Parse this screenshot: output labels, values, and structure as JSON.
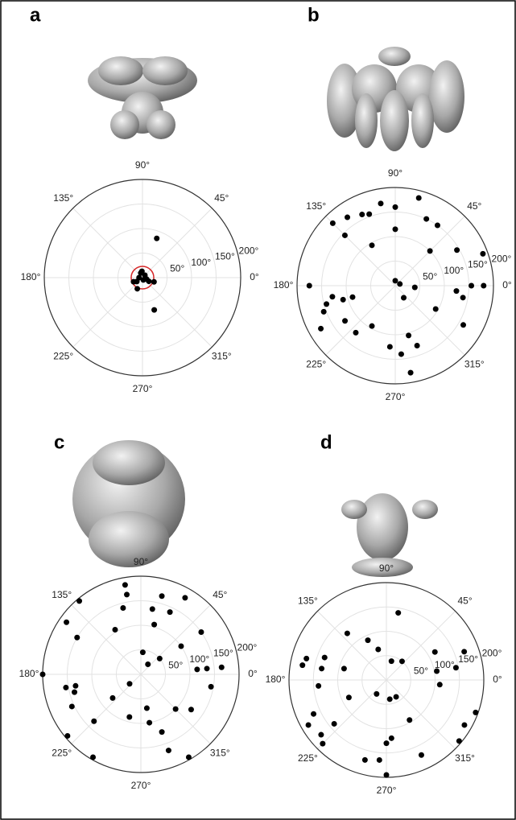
{
  "chart_data": [
    {
      "type": "polar",
      "label": "a",
      "theta": [
        70,
        340,
        290,
        245,
        205,
        110,
        45,
        290,
        180,
        340,
        95,
        215,
        330
      ],
      "r": [
        85,
        25,
        70,
        25,
        20,
        10,
        7,
        5,
        7,
        9,
        13,
        14,
        15
      ],
      "color": "#000000",
      "highlight_r": 23,
      "highlight_color": "#d62728",
      "rlim": [
        0,
        200
      ],
      "rticks": [
        {
          "value": 50,
          "label": "50°"
        },
        {
          "value": 100,
          "label": "100°"
        },
        {
          "value": 150,
          "label": "150°"
        },
        {
          "value": 200,
          "label": "200°"
        }
      ],
      "angle_ticks": [
        {
          "value": 0,
          "label": "0°"
        },
        {
          "value": 45,
          "label": "45°"
        },
        {
          "value": 90,
          "label": "90°"
        },
        {
          "value": 135,
          "label": "135°"
        },
        {
          "value": 180,
          "label": "180°"
        },
        {
          "value": 225,
          "label": "225°"
        },
        {
          "value": 270,
          "label": "270°"
        },
        {
          "value": 315,
          "label": "315°"
        }
      ]
    },
    {
      "type": "polar",
      "label": "b",
      "theta": [
        100,
        75,
        125,
        115,
        110,
        90,
        135,
        65,
        55,
        135,
        90,
        120,
        45,
        20,
        30,
        90,
        20,
        180,
        0,
        0,
        190,
        195,
        195,
        195,
        355,
        305,
        350,
        355,
        200,
        210,
        215,
        330,
        240,
        230,
        285,
        265,
        275,
        290,
        280,
        330
      ],
      "r": [
        170,
        185,
        170,
        160,
        155,
        160,
        180,
        150,
        150,
        145,
        115,
        95,
        100,
        190,
        145,
        10,
        10,
        175,
        155,
        180,
        130,
        145,
        110,
        90,
        40,
        30,
        140,
        125,
        155,
        175,
        125,
        95,
        95,
        125,
        105,
        125,
        140,
        130,
        180,
        160
      ],
      "color": "#000000",
      "rlim": [
        0,
        200
      ],
      "rticks": [
        {
          "value": 50,
          "label": "50°"
        },
        {
          "value": 100,
          "label": "100°"
        },
        {
          "value": 150,
          "label": "150°"
        },
        {
          "value": 200,
          "label": "200°"
        }
      ],
      "angle_ticks": [
        {
          "value": 0,
          "label": "0°"
        },
        {
          "value": 45,
          "label": "45°"
        },
        {
          "value": 90,
          "label": "90°"
        },
        {
          "value": 135,
          "label": "135°"
        },
        {
          "value": 180,
          "label": "180°"
        },
        {
          "value": 225,
          "label": "225°"
        },
        {
          "value": 270,
          "label": "270°"
        },
        {
          "value": 315,
          "label": "315°"
        }
      ]
    },
    {
      "type": "polar",
      "label": "c",
      "theta": [
        100,
        75,
        130,
        100,
        105,
        65,
        80,
        60,
        35,
        35,
        75,
        145,
        120,
        150,
        85,
        55,
        40,
        5,
        5,
        350,
        5,
        180,
        190,
        195,
        205,
        190,
        220,
        220,
        225,
        255,
        280,
        280,
        315,
        325,
        290,
        290,
        300,
        220,
        240
      ],
      "r": [
        185,
        165,
        195,
        165,
        140,
        140,
        135,
        180,
        150,
        100,
        105,
        185,
        105,
        150,
        45,
        25,
        50,
        135,
        165,
        145,
        115,
        200,
        155,
        140,
        155,
        135,
        30,
        75,
        135,
        90,
        70,
        100,
        100,
        125,
        165,
        125,
        195,
        195,
        195
      ],
      "color": "#000000",
      "rlim": [
        0,
        200
      ],
      "rticks": [
        {
          "value": 50,
          "label": "50°"
        },
        {
          "value": 100,
          "label": "100°"
        },
        {
          "value": 150,
          "label": "150°"
        },
        {
          "value": 200,
          "label": "200°"
        }
      ],
      "angle_ticks": [
        {
          "value": 0,
          "label": "0°"
        },
        {
          "value": 45,
          "label": "45°"
        },
        {
          "value": 90,
          "label": "90°"
        },
        {
          "value": 135,
          "label": "135°"
        },
        {
          "value": 180,
          "label": "180°"
        },
        {
          "value": 225,
          "label": "225°"
        },
        {
          "value": 270,
          "label": "270°"
        },
        {
          "value": 315,
          "label": "315°"
        }
      ]
    },
    {
      "type": "polar",
      "label": "d",
      "theta": [
        80,
        115,
        130,
        105,
        165,
        160,
        170,
        165,
        170,
        75,
        50,
        10,
        20,
        10,
        355,
        30,
        340,
        185,
        235,
        205,
        300,
        280,
        205,
        220,
        210,
        220,
        300,
        295,
        320,
        275,
        270,
        265,
        255,
        270,
        225,
        330
      ],
      "r": [
        140,
        90,
        125,
        65,
        170,
        135,
        135,
        90,
        175,
        40,
        50,
        105,
        170,
        145,
        110,
        115,
        195,
        140,
        35,
        85,
        40,
        40,
        165,
        140,
        185,
        175,
        95,
        170,
        195,
        120,
        130,
        165,
        170,
        195,
        185,
        185
      ],
      "color": "#000000",
      "rlim": [
        0,
        200
      ],
      "rticks": [
        {
          "value": 50,
          "label": "50°"
        },
        {
          "value": 100,
          "label": "100°"
        },
        {
          "value": 150,
          "label": "150°"
        },
        {
          "value": 200,
          "label": "200°"
        }
      ],
      "angle_ticks": [
        {
          "value": 0,
          "label": "0°"
        },
        {
          "value": 45,
          "label": "45°"
        },
        {
          "value": 90,
          "label": "90°"
        },
        {
          "value": 135,
          "label": "135°"
        },
        {
          "value": 180,
          "label": "180°"
        },
        {
          "value": 225,
          "label": "225°"
        },
        {
          "value": 270,
          "label": "270°"
        },
        {
          "value": 315,
          "label": "315°"
        }
      ]
    }
  ]
}
